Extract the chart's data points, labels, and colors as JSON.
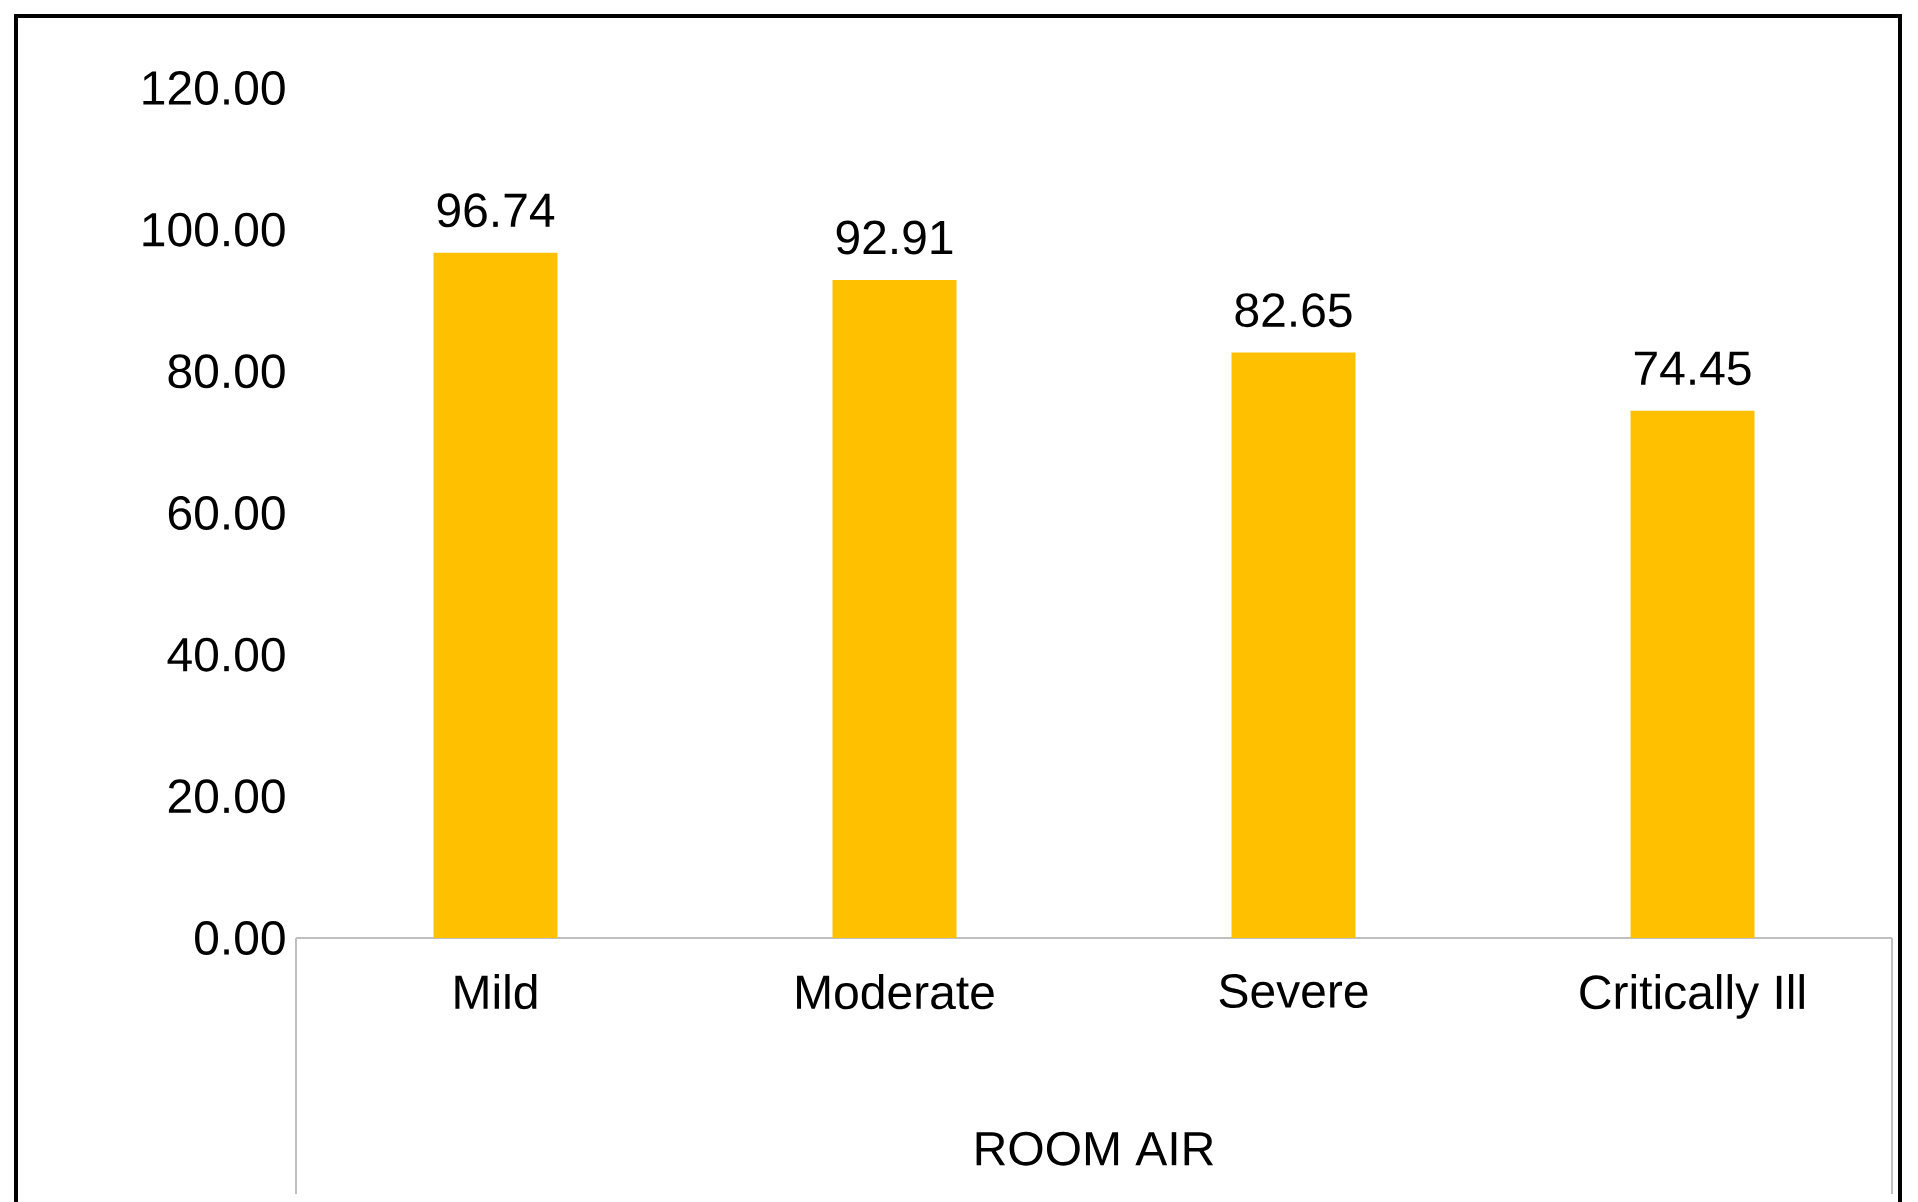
{
  "chart_data": {
    "type": "bar",
    "xlabel": "ROOM AIR",
    "categories": [
      "Mild",
      "Moderate",
      "Severe",
      "Critically Ill"
    ],
    "values": [
      96.74,
      92.91,
      82.65,
      74.45
    ],
    "color": "#ffc000",
    "ylim": [
      0,
      120
    ],
    "yticks": [
      {
        "value": 0,
        "label": "0.00"
      },
      {
        "value": 20,
        "label": "20.00"
      },
      {
        "value": 40,
        "label": "40.00"
      },
      {
        "value": 60,
        "label": "60.00"
      },
      {
        "value": 80,
        "label": "80.00"
      },
      {
        "value": 100,
        "label": "100.00"
      },
      {
        "value": 120,
        "label": "120.00"
      }
    ],
    "data_labels": true
  }
}
